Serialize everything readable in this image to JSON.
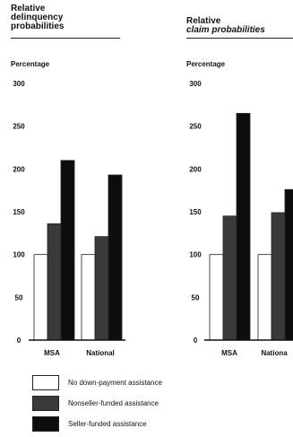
{
  "chart_data": [
    {
      "type": "bar",
      "title": [
        "Relative",
        "delinquency",
        "probabilities"
      ],
      "ylabel": "Percentage",
      "categories": [
        "MSA",
        "National"
      ],
      "yticks": [
        "300",
        "250",
        "200",
        "150",
        "100",
        "50",
        "0"
      ],
      "ylim": [
        0,
        300
      ],
      "series": [
        {
          "name": "No down-payment assistance",
          "values": [
            100,
            100
          ]
        },
        {
          "name": "Nonseller-funded assistance",
          "values": [
            136,
            121
          ]
        },
        {
          "name": "Seller-funded assistance",
          "values": [
            210,
            193
          ]
        }
      ]
    },
    {
      "type": "bar",
      "title": [
        "Relative",
        "claim probabilities"
      ],
      "ylabel": "Percentage",
      "categories": [
        "MSA",
        "Nationa"
      ],
      "yticks": [
        "300",
        "250",
        "200",
        "150",
        "100",
        "50",
        "0"
      ],
      "ylim": [
        0,
        300
      ],
      "series": [
        {
          "name": "No down-payment assistance",
          "values": [
            100,
            100
          ]
        },
        {
          "name": "Nonseller-funded assistance",
          "values": [
            145,
            149
          ]
        },
        {
          "name": "Seller-funded assistance",
          "values": [
            265,
            176
          ]
        }
      ]
    }
  ],
  "legend": [
    {
      "label": "No down-payment assistance",
      "color": "#ffffff"
    },
    {
      "label": "Nonseller-funded assistance",
      "color": "#3a3a3a"
    },
    {
      "label": "Seller-funded assistance",
      "color": "#0d0d0d"
    }
  ],
  "colors": {
    "none": "#ffffff",
    "nonseller": "#3a3a3a",
    "seller": "#0d0d0d",
    "axis": "#111111"
  }
}
